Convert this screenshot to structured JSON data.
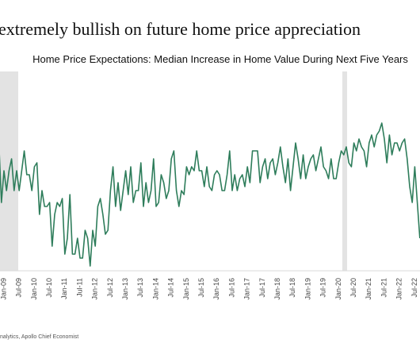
{
  "chart_data": {
    "type": "line",
    "title": "extremely bullish on future home price appreciation",
    "subtitle": "Home Price Expectations: Median Increase in Home Value During Next Five Years",
    "source": "nalytics, Apollo Chief Economist",
    "color": "#2e7d5b",
    "ylim": [
      2,
      7
    ],
    "categories": [
      null,
      null,
      "Jan-09",
      null,
      null,
      null,
      null,
      null,
      "Jul-09",
      null,
      null,
      null,
      null,
      null,
      "Jan-10",
      null,
      null,
      null,
      null,
      null,
      "Jul-10",
      null,
      null,
      null,
      null,
      null,
      "Jan-11",
      null,
      null,
      null,
      null,
      null,
      "Jul-11",
      null,
      null,
      null,
      null,
      null,
      "Jan-12",
      null,
      null,
      null,
      null,
      null,
      "Jul-12",
      null,
      null,
      null,
      null,
      null,
      "Jan-13",
      null,
      null,
      null,
      null,
      null,
      "Jul-13",
      null,
      null,
      null,
      null,
      null,
      "Jan-14",
      null,
      null,
      null,
      null,
      null,
      "Jul-14",
      null,
      null,
      null,
      null,
      null,
      "Jan-15",
      null,
      null,
      null,
      null,
      null,
      "Jul-15",
      null,
      null,
      null,
      null,
      null,
      "Jan-16",
      null,
      null,
      null,
      null,
      null,
      "Jul-16",
      null,
      null,
      null,
      null,
      null,
      "Jan-17",
      null,
      null,
      null,
      null,
      null,
      "Jul-17",
      null,
      null,
      null,
      null,
      null,
      "Jan-18",
      null,
      null,
      null,
      null,
      null,
      "Jul-18",
      null,
      null,
      null,
      null,
      null,
      "Jan-19",
      null,
      null,
      null,
      null,
      null,
      "Jul-19",
      null,
      null,
      null,
      null,
      null,
      "Jan-20",
      null,
      null,
      null,
      null,
      null,
      "Jul-20",
      null,
      null,
      null,
      null,
      null,
      "Jan-21",
      null,
      null,
      null,
      null,
      null,
      "Jul-21",
      null,
      null,
      null,
      null,
      null,
      "Jan-22",
      null,
      null,
      null,
      null,
      null,
      "Jul-22",
      null,
      null
    ],
    "values": [
      5.2,
      3.7,
      4.5,
      4.0,
      4.5,
      4.8,
      4.0,
      4.5,
      4.0,
      4.5,
      5.0,
      4.4,
      4.4,
      4.0,
      4.6,
      4.7,
      3.4,
      4.0,
      3.6,
      3.6,
      3.7,
      2.6,
      3.4,
      3.7,
      3.6,
      3.8,
      2.4,
      2.8,
      3.9,
      2.4,
      2.4,
      2.8,
      2.3,
      2.3,
      3.0,
      2.8,
      2.1,
      3.0,
      2.6,
      3.6,
      3.8,
      3.4,
      2.9,
      3.0,
      4.0,
      4.6,
      3.6,
      4.2,
      3.5,
      4.0,
      4.5,
      3.9,
      4.6,
      3.7,
      4.0,
      4.0,
      4.7,
      3.6,
      4.2,
      3.7,
      4.0,
      4.8,
      3.6,
      3.7,
      4.4,
      4.2,
      3.8,
      4.0,
      4.8,
      5.0,
      4.0,
      3.6,
      4.0,
      3.9,
      4.6,
      4.4,
      4.6,
      4.5,
      5.0,
      4.5,
      4.5,
      4.1,
      4.6,
      4.1,
      4.0,
      4.4,
      4.5,
      4.4,
      4.0,
      4.0,
      4.4,
      5.0,
      4.0,
      4.4,
      4.0,
      4.3,
      4.4,
      4.1,
      4.6,
      4.2,
      5.0,
      5.0,
      5.0,
      4.2,
      4.6,
      4.8,
      4.3,
      4.7,
      4.8,
      4.4,
      4.7,
      5.1,
      4.6,
      4.2,
      4.8,
      4.0,
      4.6,
      5.2,
      4.8,
      4.3,
      4.9,
      4.3,
      4.6,
      4.8,
      4.9,
      4.5,
      4.8,
      5.1,
      4.6,
      4.5,
      4.3,
      4.8,
      4.3,
      4.3,
      4.7,
      5.0,
      4.9,
      5.1,
      4.7,
      4.6,
      5.2,
      5.0,
      5.3,
      5.1,
      5.0,
      4.6,
      5.2,
      5.4,
      5.1,
      5.4,
      5.5,
      5.7,
      5.3,
      4.7,
      5.4,
      4.9,
      5.2,
      5.2,
      5.0,
      5.2,
      5.3,
      4.8,
      4.1,
      3.7,
      4.6,
      3.7,
      2.8
    ]
  }
}
